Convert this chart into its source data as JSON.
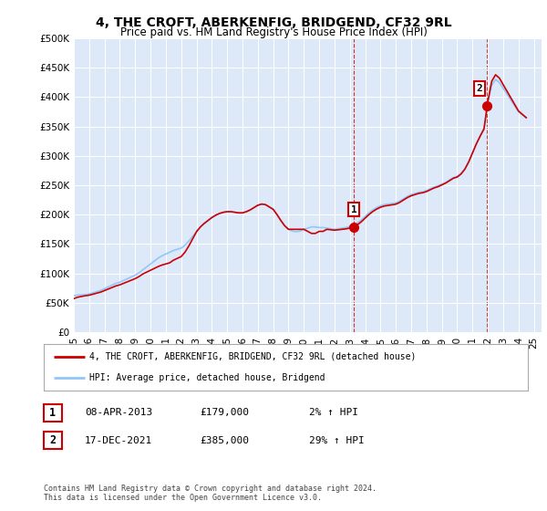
{
  "title": "4, THE CROFT, ABERKENFIG, BRIDGEND, CF32 9RL",
  "subtitle": "Price paid vs. HM Land Registry's House Price Index (HPI)",
  "ylim": [
    0,
    500000
  ],
  "xlim_start": 1995.0,
  "xlim_end": 2025.5,
  "yticks": [
    0,
    50000,
    100000,
    150000,
    200000,
    250000,
    300000,
    350000,
    400000,
    450000,
    500000
  ],
  "ytick_labels": [
    "£0",
    "£50K",
    "£100K",
    "£150K",
    "£200K",
    "£250K",
    "£300K",
    "£350K",
    "£400K",
    "£450K",
    "£500K"
  ],
  "xtick_labels": [
    "95",
    "96",
    "97",
    "98",
    "99",
    "00",
    "01",
    "02",
    "03",
    "04",
    "05",
    "06",
    "07",
    "08",
    "09",
    "10",
    "11",
    "12",
    "13",
    "14",
    "15",
    "16",
    "17",
    "18",
    "19",
    "20",
    "21",
    "22",
    "23",
    "24",
    "25"
  ],
  "xtick_values": [
    1995,
    1996,
    1997,
    1998,
    1999,
    2000,
    2001,
    2002,
    2003,
    2004,
    2005,
    2006,
    2007,
    2008,
    2009,
    2010,
    2011,
    2012,
    2013,
    2014,
    2015,
    2016,
    2017,
    2018,
    2019,
    2020,
    2021,
    2022,
    2023,
    2024,
    2025
  ],
  "background_color": "#ffffff",
  "plot_bg_color": "#dde8f8",
  "grid_color": "#ffffff",
  "line1_color": "#cc0000",
  "line2_color": "#90c8f8",
  "marker1_x": 2013.27,
  "marker1_y": 179000,
  "marker2_x": 2021.96,
  "marker2_y": 385000,
  "legend_line1": "4, THE CROFT, ABERKENFIG, BRIDGEND, CF32 9RL (detached house)",
  "legend_line2": "HPI: Average price, detached house, Bridgend",
  "table_rows": [
    {
      "num": "1",
      "date": "08-APR-2013",
      "price": "£179,000",
      "hpi": "2% ↑ HPI"
    },
    {
      "num": "2",
      "date": "17-DEC-2021",
      "price": "£385,000",
      "hpi": "29% ↑ HPI"
    }
  ],
  "footer": "Contains HM Land Registry data © Crown copyright and database right 2024.\nThis data is licensed under the Open Government Licence v3.0.",
  "hpi_x": [
    1995.0,
    1995.25,
    1995.5,
    1995.75,
    1996.0,
    1996.25,
    1996.5,
    1996.75,
    1997.0,
    1997.25,
    1997.5,
    1997.75,
    1998.0,
    1998.25,
    1998.5,
    1998.75,
    1999.0,
    1999.25,
    1999.5,
    1999.75,
    2000.0,
    2000.25,
    2000.5,
    2000.75,
    2001.0,
    2001.25,
    2001.5,
    2001.75,
    2002.0,
    2002.25,
    2002.5,
    2002.75,
    2003.0,
    2003.25,
    2003.5,
    2003.75,
    2004.0,
    2004.25,
    2004.5,
    2004.75,
    2005.0,
    2005.25,
    2005.5,
    2005.75,
    2006.0,
    2006.25,
    2006.5,
    2006.75,
    2007.0,
    2007.25,
    2007.5,
    2007.75,
    2008.0,
    2008.25,
    2008.5,
    2008.75,
    2009.0,
    2009.25,
    2009.5,
    2009.75,
    2010.0,
    2010.25,
    2010.5,
    2010.75,
    2011.0,
    2011.25,
    2011.5,
    2011.75,
    2012.0,
    2012.25,
    2012.5,
    2012.75,
    2013.0,
    2013.25,
    2013.5,
    2013.75,
    2014.0,
    2014.25,
    2014.5,
    2014.75,
    2015.0,
    2015.25,
    2015.5,
    2015.75,
    2016.0,
    2016.25,
    2016.5,
    2016.75,
    2017.0,
    2017.25,
    2017.5,
    2017.75,
    2018.0,
    2018.25,
    2018.5,
    2018.75,
    2019.0,
    2019.25,
    2019.5,
    2019.75,
    2020.0,
    2020.25,
    2020.5,
    2020.75,
    2021.0,
    2021.25,
    2021.5,
    2021.75,
    2022.0,
    2022.25,
    2022.5,
    2022.75,
    2023.0,
    2023.25,
    2023.5,
    2023.75,
    2024.0,
    2024.25,
    2024.5
  ],
  "hpi_y": [
    62000,
    63000,
    63500,
    64000,
    65000,
    67000,
    69000,
    71000,
    74000,
    77000,
    80000,
    83000,
    85000,
    88000,
    91000,
    94000,
    97000,
    101000,
    106000,
    111000,
    116000,
    121000,
    126000,
    130000,
    133000,
    136000,
    139000,
    141000,
    143000,
    148000,
    155000,
    163000,
    171000,
    179000,
    185000,
    190000,
    195000,
    199000,
    202000,
    204000,
    205000,
    205000,
    204000,
    203000,
    203000,
    205000,
    208000,
    212000,
    216000,
    218000,
    217000,
    213000,
    209000,
    200000,
    190000,
    181000,
    175000,
    172000,
    171000,
    172000,
    175000,
    177000,
    179000,
    179000,
    178000,
    178000,
    177000,
    176000,
    175000,
    176000,
    177000,
    178000,
    180000,
    182000,
    186000,
    191000,
    197000,
    203000,
    208000,
    212000,
    215000,
    217000,
    218000,
    219000,
    220000,
    223000,
    227000,
    231000,
    234000,
    236000,
    238000,
    239000,
    241000,
    244000,
    247000,
    249000,
    252000,
    255000,
    259000,
    263000,
    265000,
    270000,
    278000,
    290000,
    305000,
    320000,
    333000,
    345000,
    390000,
    420000,
    430000,
    425000,
    415000,
    405000,
    395000,
    385000,
    375000,
    370000,
    365000
  ],
  "dashed_line1_x": 2013.27,
  "dashed_line2_x": 2021.96
}
